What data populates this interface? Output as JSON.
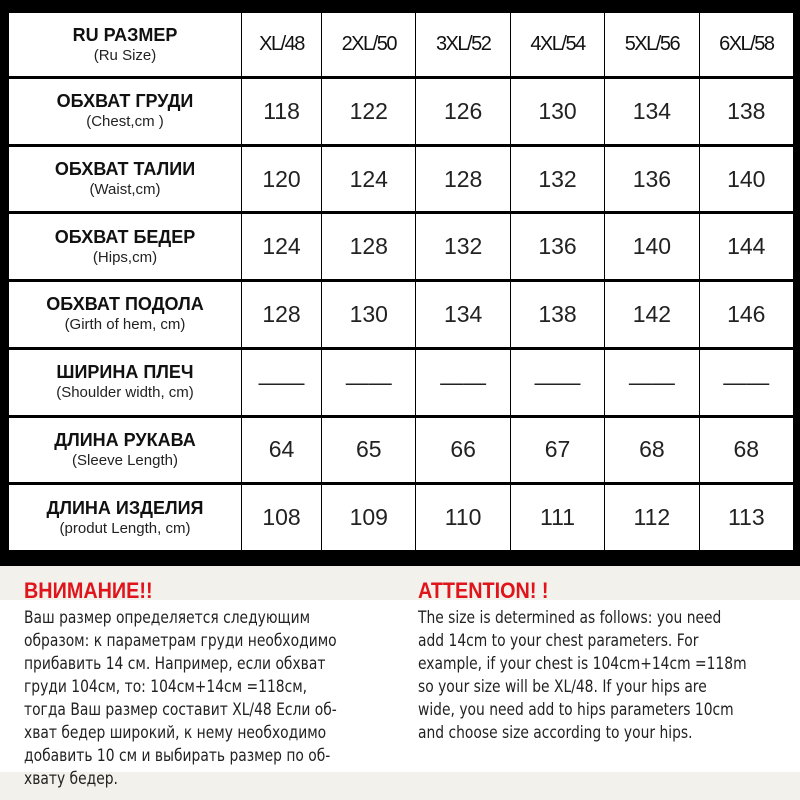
{
  "table": {
    "header": {
      "label_ru": "RU РАЗМЕР",
      "label_en": "(Ru Size)",
      "sizes": [
        "XL/48",
        "2XL/50",
        "3XL/52",
        "4XL/54",
        "5XL/56",
        "6XL/58"
      ]
    },
    "rows": [
      {
        "label_ru": "ОБХВАТ ГРУДИ",
        "label_en": "(Chest,cm )",
        "values": [
          "118",
          "122",
          "126",
          "130",
          "134",
          "138"
        ]
      },
      {
        "label_ru": "ОБХВАТ ТАЛИИ",
        "label_en": "(Waist,cm)",
        "values": [
          "120",
          "124",
          "128",
          "132",
          "136",
          "140"
        ]
      },
      {
        "label_ru": "ОБХВАТ БЕДЕР",
        "label_en": "(Hips,cm)",
        "values": [
          "124",
          "128",
          "132",
          "136",
          "140",
          "144"
        ]
      },
      {
        "label_ru": "ОБХВАТ ПОДОЛА",
        "label_en": "(Girth of hem, cm)",
        "values": [
          "128",
          "130",
          "134",
          "138",
          "142",
          "146"
        ]
      },
      {
        "label_ru": "ШИРИНА ПЛЕЧ",
        "label_en": "(Shoulder width, cm)",
        "values": [
          "——",
          "——",
          "——",
          "——",
          "——",
          "——"
        ]
      },
      {
        "label_ru": "ДЛИНА РУКАВА",
        "label_en": "(Sleeve Length)",
        "values": [
          "64",
          "65",
          "66",
          "67",
          "68",
          "68"
        ]
      },
      {
        "label_ru": "ДЛИНА ИЗДЕЛИЯ",
        "label_en": "(produt Length, cm)",
        "values": [
          "108",
          "109",
          "110",
          "111",
          "112",
          "113"
        ]
      }
    ]
  },
  "notice": {
    "ru_title": "ВНИМАНИЕ!!",
    "ru_lines": [
      "Ваш размер определяется следующим",
      "образом: к параметрам груди необходимо",
      "прибавить 14 см. Например, если обхват",
      "груди  104см, то: 104см+14см =118см,",
      "тогда Ваш размер составит XL/48 Если об-",
      "хват бедер широкий, к нему необходимо",
      "добавить 10 см и выбирать размер по об-",
      "хвату бедер."
    ],
    "en_title": "ATTENTION! !",
    "en_lines": [
      "The size is determined as follows: you need",
      "add 14cm to your chest parameters. For",
      "example, if your chest is 104cm+14cm =118m",
      "so your size will be XL/48. If your hips are",
      "wide, you need add to hips parameters 10cm",
      "and choose size according to your hips."
    ],
    "title_color": "#e0141b"
  }
}
